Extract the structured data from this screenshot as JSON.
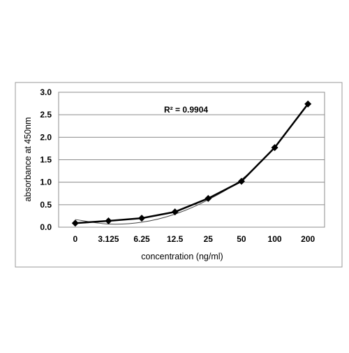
{
  "chart_data": {
    "type": "line",
    "title": "",
    "xlabel": "concentration (ng/ml)",
    "ylabel": "absorbance at 450nm",
    "categories": [
      "0",
      "3.125",
      "6.25",
      "12.5",
      "25",
      "50",
      "100",
      "200"
    ],
    "y_ticks": [
      "0.0",
      "0.5",
      "1.0",
      "1.5",
      "2.0",
      "2.5",
      "3.0"
    ],
    "ylim": [
      0,
      3.0
    ],
    "grid": true,
    "legend": "none",
    "annotation": "R² = 0.9904",
    "series": [
      {
        "values": [
          0.09,
          0.14,
          0.2,
          0.34,
          0.64,
          1.02,
          1.77,
          2.74
        ],
        "marker": "diamond",
        "color": "#000000"
      }
    ],
    "trendline": {
      "type": "polynomial",
      "color": "#444444",
      "values": [
        0.17,
        0.07,
        0.11,
        0.29,
        0.61,
        1.06,
        1.78,
        2.73
      ]
    }
  }
}
